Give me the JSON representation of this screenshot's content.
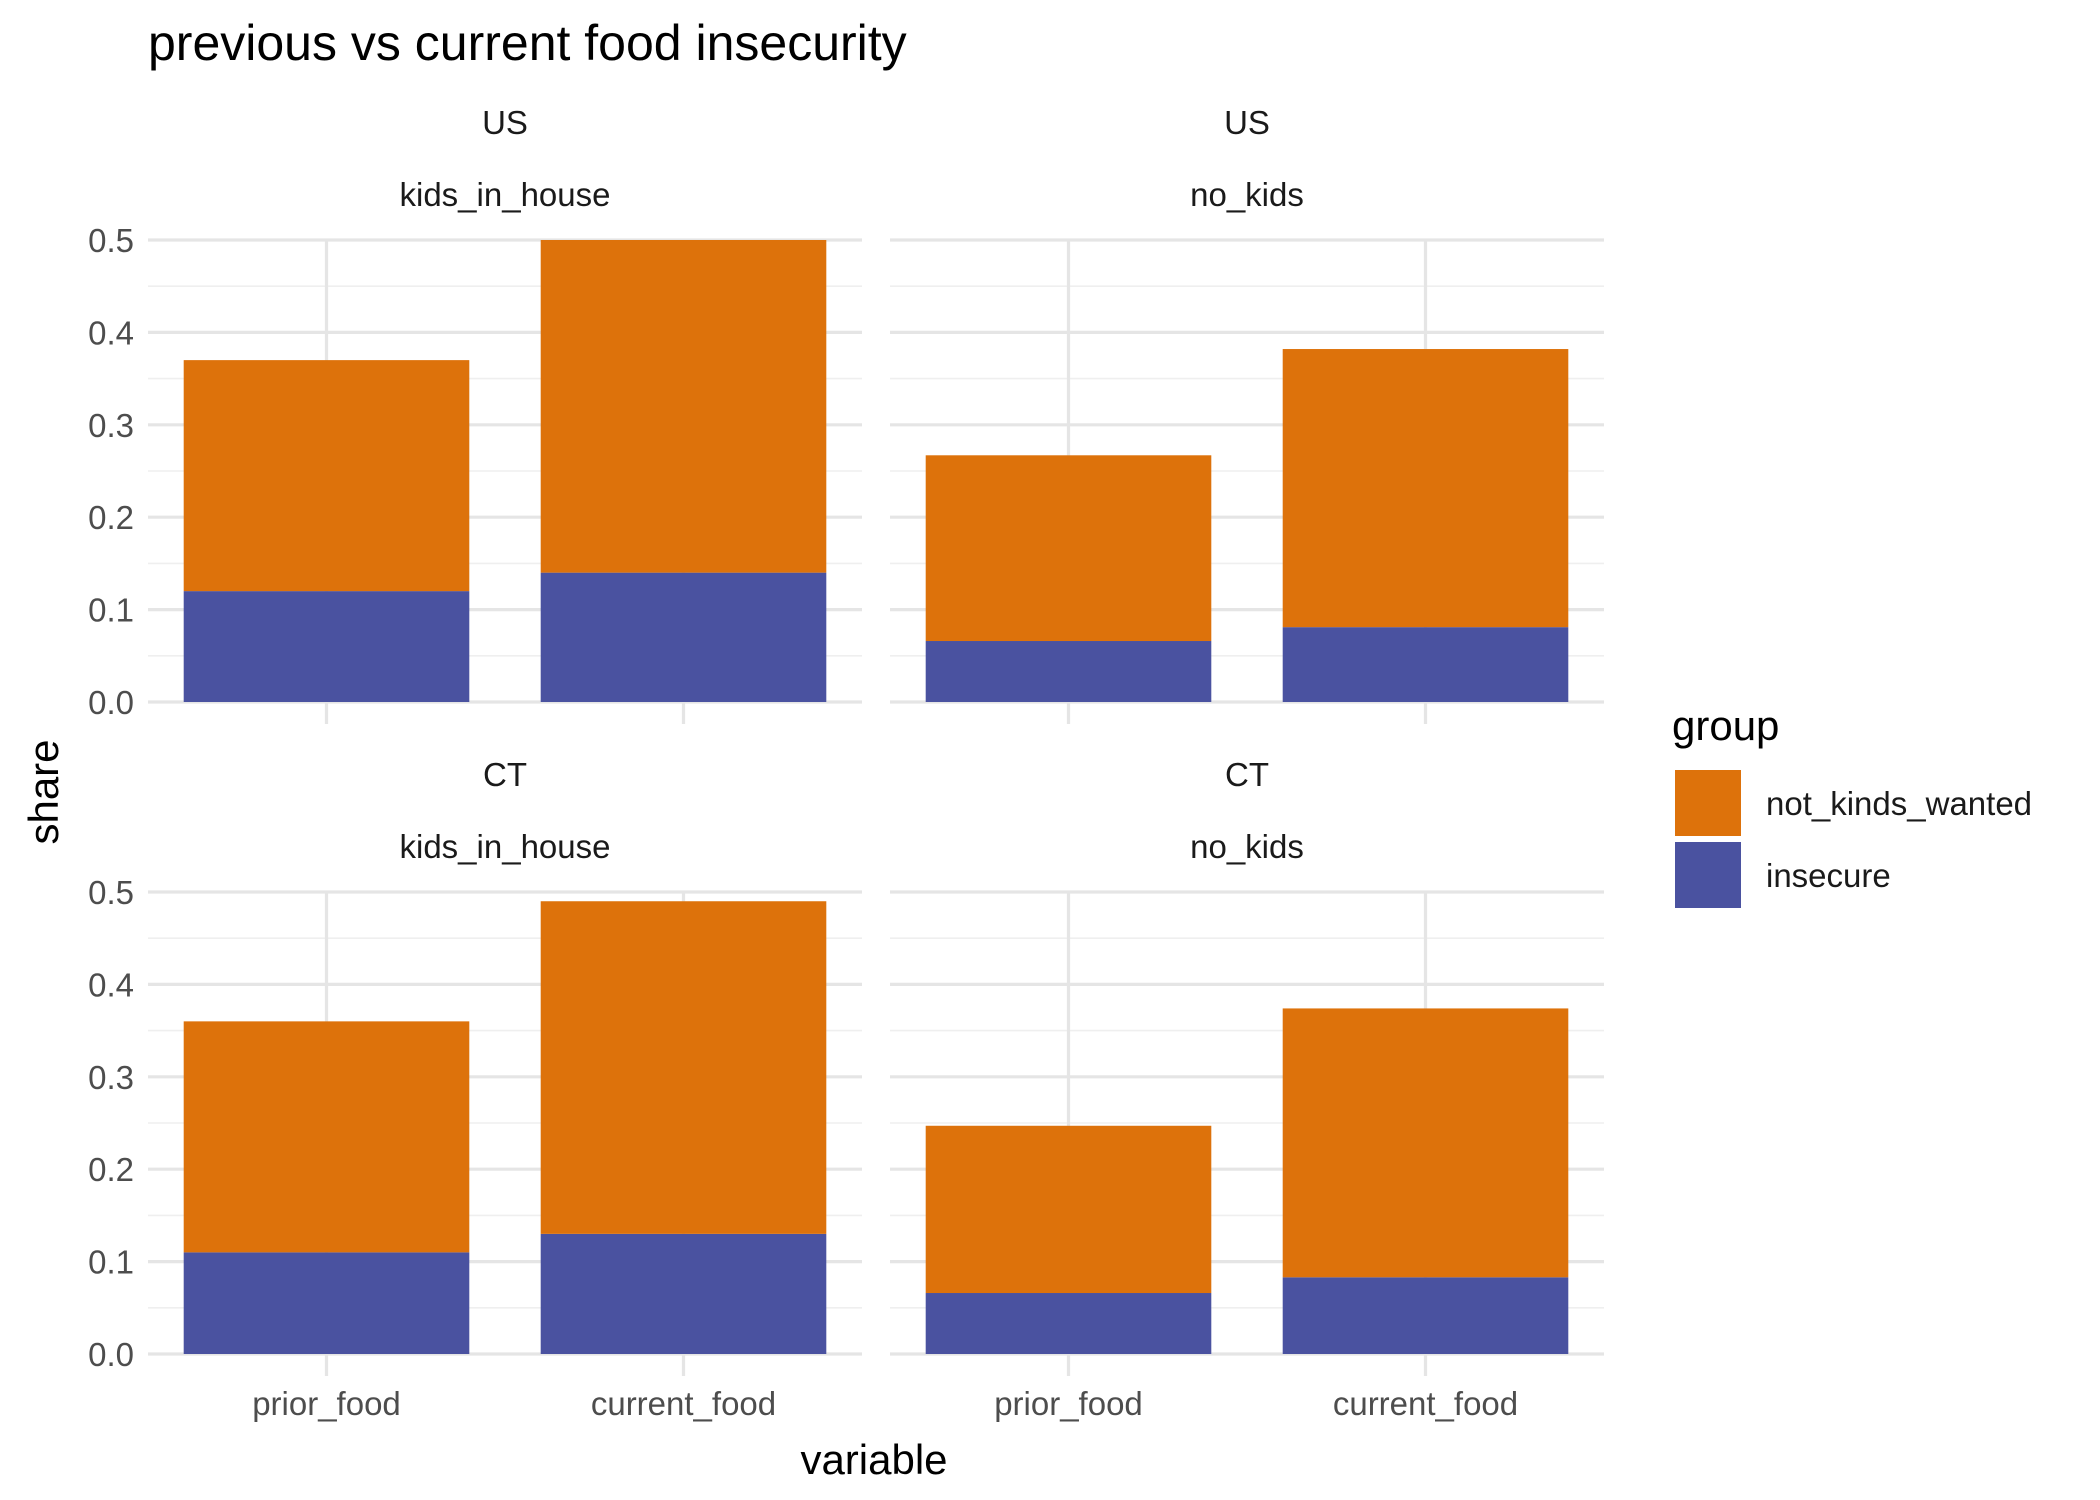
{
  "chart_data": {
    "type": "bar",
    "stacked": true,
    "title": "previous vs current food insecurity",
    "xlabel": "variable",
    "ylabel": "share",
    "categories": [
      "prior_food",
      "current_food"
    ],
    "y_ticks": [
      "0.0",
      "0.1",
      "0.2",
      "0.3",
      "0.4",
      "0.5"
    ],
    "ylim": [
      0,
      0.5
    ],
    "grid": true,
    "legend": {
      "title": "group",
      "position": "right",
      "items": [
        {
          "label": "not_kinds_wanted",
          "color": "#DD720B"
        },
        {
          "label": "insecure",
          "color": "#4A52A0"
        }
      ]
    },
    "panels": [
      {
        "strip_top": "US",
        "strip_bottom": "kids_in_house",
        "series": [
          {
            "name": "insecure",
            "values": [
              0.12,
              0.14
            ]
          },
          {
            "name": "not_kinds_wanted",
            "values": [
              0.25,
              0.36
            ]
          }
        ]
      },
      {
        "strip_top": "US",
        "strip_bottom": "no_kids",
        "series": [
          {
            "name": "insecure",
            "values": [
              0.066,
              0.081
            ]
          },
          {
            "name": "not_kinds_wanted",
            "values": [
              0.201,
              0.301
            ]
          }
        ]
      },
      {
        "strip_top": "CT",
        "strip_bottom": "kids_in_house",
        "series": [
          {
            "name": "insecure",
            "values": [
              0.11,
              0.13
            ]
          },
          {
            "name": "not_kinds_wanted",
            "values": [
              0.25,
              0.36
            ]
          }
        ]
      },
      {
        "strip_top": "CT",
        "strip_bottom": "no_kids",
        "series": [
          {
            "name": "insecure",
            "values": [
              0.066,
              0.083
            ]
          },
          {
            "name": "not_kinds_wanted",
            "values": [
              0.181,
              0.291
            ]
          }
        ]
      }
    ]
  }
}
